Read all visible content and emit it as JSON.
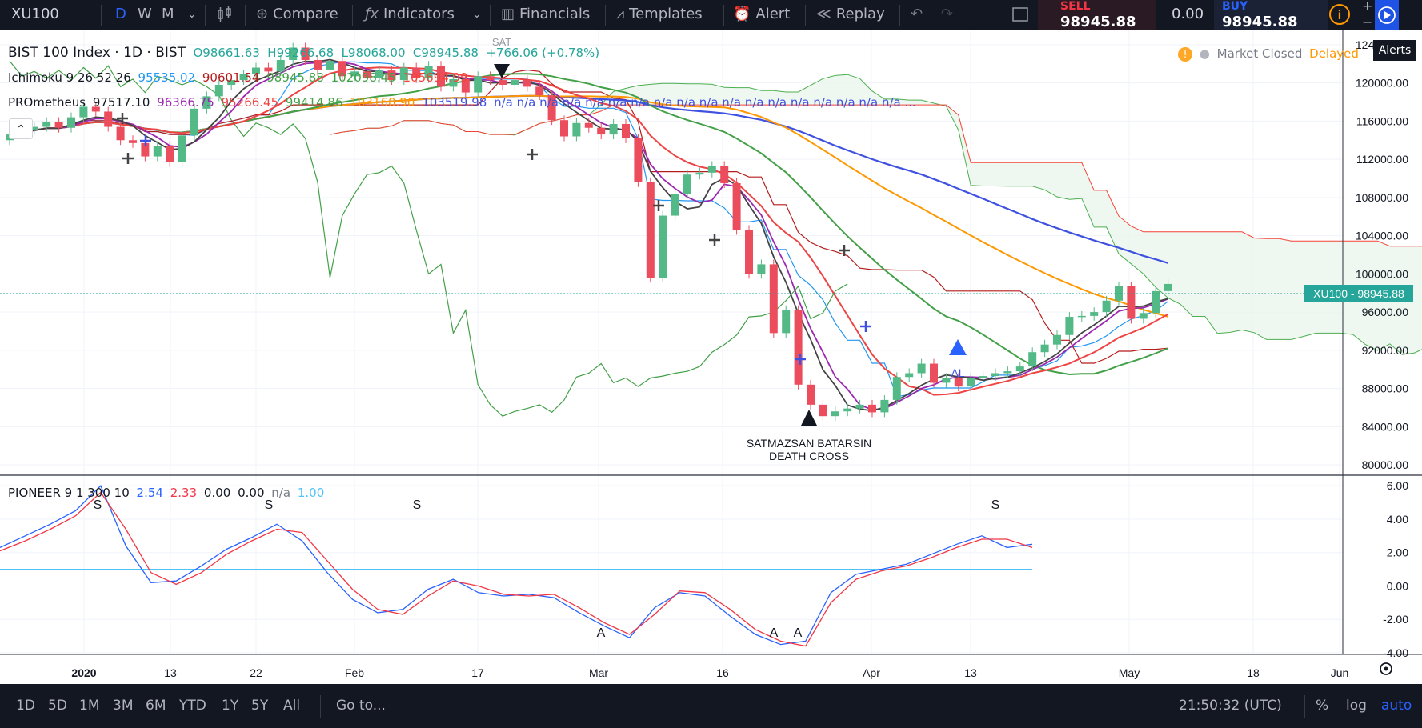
{
  "toolbar": {
    "symbol": "XU100",
    "intervals": [
      "D",
      "W",
      "M"
    ],
    "compare": "Compare",
    "indicators": "Indicators",
    "financials": "Financials",
    "templates": "Templates",
    "alert": "Alert",
    "replay": "Replay",
    "sell_label": "SELL",
    "sell_value": "98945.88",
    "spread": "0.00",
    "buy_label": "BUY",
    "buy_value": "98945.88",
    "alerts_tooltip": "Alerts"
  },
  "legend": {
    "title": "BIST 100 Index · 1D · BIST",
    "open": "O98661.63",
    "high": "H99266.68",
    "low": "L98068.00",
    "close": "C98945.88",
    "change": "+766.06 (+0.78%)",
    "ichimoku": {
      "name": "Ichimoku 9 26 52 26",
      "values": [
        "95535.02",
        "90601.54",
        "98945.88",
        "102098.45",
        "105694.99"
      ]
    },
    "prometheus": {
      "name": "PROmetheus",
      "values": [
        "97517.10",
        "96366.75",
        "95266.45",
        "99414.86",
        "103160.90",
        "103519.98"
      ],
      "tail": "n/a n/a n/a n/a n/a n/a n/a n/a n/a n/a n/a n/a n/a n/a n/a n/a n/a n/a ..."
    },
    "pioneer": {
      "name": "PIONEER 9 1 300 10",
      "values": [
        "2.54",
        "2.33",
        "0.00",
        "0.00",
        "n/a",
        "1.00"
      ]
    },
    "market_status": "Market Closed",
    "delayed": "Delayed",
    "price_tag": "XU100 - 98945.88"
  },
  "annotations": {
    "sat": "SAT",
    "al": "AL",
    "death_cross_line1": "SATMAZSAN BATARSIN",
    "death_cross_line2": "DEATH CROSS",
    "pioneer_marks": [
      "S",
      "S",
      "S",
      "S",
      "A",
      "A",
      "A"
    ]
  },
  "bottom": {
    "ranges": [
      "1D",
      "5D",
      "1M",
      "3M",
      "6M",
      "YTD",
      "1Y",
      "5Y",
      "All"
    ],
    "goto": "Go to...",
    "time": "21:50:32 (UTC)",
    "pct": "%",
    "log": "log",
    "auto": "auto"
  },
  "colors": {
    "up": "#53b987",
    "down": "#eb4d5c",
    "up_text": "#26a69a",
    "bg_dark": "#131722",
    "accent": "#2962ff",
    "ichimoku_conv": "#2196f3",
    "ichimoku_base": "#b71c1c",
    "ichimoku_lagging": "#43a047",
    "ichimoku_span_a": "#4caf50",
    "ichimoku_span_b": "#f44336",
    "ma_orange": "#ff9800",
    "ma_blue": "#3f51e0",
    "ma_green": "#43a047",
    "ma_red": "#ef4444",
    "ma_purple": "#9c27b0",
    "ma_black": "#444444",
    "pioneer_blue": "#2962ff",
    "pioneer_red": "#f23645",
    "pioneer_level": "#4fc3f7"
  },
  "chart_data": [
    {
      "type": "candlestick",
      "title": "BIST 100 Index · 1D · BIST",
      "y_axis_ticks": [
        "124000.00",
        "120000.00",
        "116000.00",
        "112000.00",
        "108000.00",
        "104000.00",
        "100000.00",
        "96000.00",
        "92000.00",
        "88000.00",
        "84000.00",
        "80000.00"
      ],
      "x_axis_ticks": [
        "2020",
        "13",
        "22",
        "Feb",
        "17",
        "Mar",
        "16",
        "Apr",
        "13",
        "May",
        "18",
        "Jun"
      ],
      "ylim": [
        79000,
        125500
      ],
      "candles": [
        {
          "o": 114000,
          "c": 114600
        },
        {
          "o": 114600,
          "c": 115100
        },
        {
          "o": 115100,
          "c": 115400
        },
        {
          "o": 115400,
          "c": 115900
        },
        {
          "o": 115900,
          "c": 115300
        },
        {
          "o": 115300,
          "c": 116400
        },
        {
          "o": 116400,
          "c": 117500
        },
        {
          "o": 117500,
          "c": 117000
        },
        {
          "o": 117000,
          "c": 115400
        },
        {
          "o": 115400,
          "c": 114000
        },
        {
          "o": 114000,
          "c": 113700
        },
        {
          "o": 113700,
          "c": 112300
        },
        {
          "o": 112300,
          "c": 113400
        },
        {
          "o": 113400,
          "c": 111700
        },
        {
          "o": 111700,
          "c": 114500
        },
        {
          "o": 114500,
          "c": 117300
        },
        {
          "o": 117300,
          "c": 118600
        },
        {
          "o": 118600,
          "c": 119800
        },
        {
          "o": 119800,
          "c": 120300
        },
        {
          "o": 120300,
          "c": 120900
        },
        {
          "o": 120900,
          "c": 121600
        },
        {
          "o": 121600,
          "c": 121200
        },
        {
          "o": 121200,
          "c": 122400
        },
        {
          "o": 122400,
          "c": 123700
        },
        {
          "o": 123700,
          "c": 122400
        },
        {
          "o": 122400,
          "c": 121400
        },
        {
          "o": 121400,
          "c": 122300
        },
        {
          "o": 122300,
          "c": 120700
        },
        {
          "o": 120700,
          "c": 121200
        },
        {
          "o": 121200,
          "c": 120500
        },
        {
          "o": 120500,
          "c": 121300
        },
        {
          "o": 121300,
          "c": 120300
        },
        {
          "o": 120300,
          "c": 121600
        },
        {
          "o": 121600,
          "c": 120500
        },
        {
          "o": 120500,
          "c": 121800
        },
        {
          "o": 121800,
          "c": 119600
        },
        {
          "o": 119600,
          "c": 120400
        },
        {
          "o": 120400,
          "c": 119000
        },
        {
          "o": 119000,
          "c": 120700
        },
        {
          "o": 120700,
          "c": 120300
        },
        {
          "o": 120300,
          "c": 119800
        },
        {
          "o": 119800,
          "c": 120300
        },
        {
          "o": 120300,
          "c": 119600
        },
        {
          "o": 119600,
          "c": 118700
        },
        {
          "o": 118700,
          "c": 116100
        },
        {
          "o": 116100,
          "c": 114400
        },
        {
          "o": 114400,
          "c": 115800
        },
        {
          "o": 115800,
          "c": 115300
        },
        {
          "o": 115300,
          "c": 114600
        },
        {
          "o": 114600,
          "c": 115700
        },
        {
          "o": 115700,
          "c": 114200
        },
        {
          "o": 114200,
          "c": 109600
        },
        {
          "o": 109600,
          "c": 99600
        },
        {
          "o": 99600,
          "c": 106100
        },
        {
          "o": 106100,
          "c": 108400
        },
        {
          "o": 108400,
          "c": 110400
        },
        {
          "o": 110400,
          "c": 110600
        },
        {
          "o": 110600,
          "c": 111300
        },
        {
          "o": 111300,
          "c": 109500
        },
        {
          "o": 109500,
          "c": 104600
        },
        {
          "o": 104600,
          "c": 100000
        },
        {
          "o": 100000,
          "c": 101000
        },
        {
          "o": 101000,
          "c": 93800
        },
        {
          "o": 93800,
          "c": 96200
        },
        {
          "o": 96200,
          "c": 88400
        },
        {
          "o": 88400,
          "c": 86300
        },
        {
          "o": 86300,
          "c": 85100
        },
        {
          "o": 85100,
          "c": 85600
        },
        {
          "o": 85600,
          "c": 85900
        },
        {
          "o": 85900,
          "c": 86300
        },
        {
          "o": 86300,
          "c": 85500
        },
        {
          "o": 85500,
          "c": 86800
        },
        {
          "o": 86800,
          "c": 89200
        },
        {
          "o": 89200,
          "c": 89600
        },
        {
          "o": 89600,
          "c": 90600
        },
        {
          "o": 90600,
          "c": 88600
        },
        {
          "o": 88600,
          "c": 89100
        },
        {
          "o": 89100,
          "c": 88200
        },
        {
          "o": 88200,
          "c": 89100
        },
        {
          "o": 89100,
          "c": 89300
        },
        {
          "o": 89300,
          "c": 89600
        },
        {
          "o": 89600,
          "c": 89800
        },
        {
          "o": 89800,
          "c": 90300
        },
        {
          "o": 90300,
          "c": 91800
        },
        {
          "o": 91800,
          "c": 92600
        },
        {
          "o": 92600,
          "c": 93600
        },
        {
          "o": 93600,
          "c": 95500
        },
        {
          "o": 95500,
          "c": 95600
        },
        {
          "o": 95600,
          "c": 96000
        },
        {
          "o": 96000,
          "c": 97200
        },
        {
          "o": 97200,
          "c": 98700
        },
        {
          "o": 98700,
          "c": 95300
        },
        {
          "o": 95300,
          "c": 95900
        },
        {
          "o": 95900,
          "c": 98200
        },
        {
          "o": 98200,
          "c": 98946
        }
      ]
    },
    {
      "type": "line",
      "title": "PIONEER 9 1 300 10",
      "y_axis_ticks": [
        "6.00",
        "4.00",
        "2.00",
        "0.00",
        "-2.00",
        "-4.00"
      ],
      "ylim": [
        -4,
        6.2
      ],
      "level": 1.0,
      "series": [
        {
          "name": "",
          "values": [
            2.3,
            3.0,
            3.7,
            4.5,
            6.0,
            2.4,
            0.2,
            0.3,
            1.2,
            2.2,
            2.9,
            3.7,
            2.7,
            0.8,
            -0.8,
            -1.6,
            -1.4,
            -0.2,
            0.4,
            -0.4,
            -0.6,
            -0.5,
            -0.7,
            -1.6,
            -2.4,
            -3.1,
            -1.3,
            -0.4,
            -0.6,
            -1.8,
            -2.9,
            -3.5,
            -3.3,
            -0.4,
            0.7,
            1.0,
            1.3,
            1.9,
            2.5,
            3.0,
            2.3,
            2.5
          ]
        },
        {
          "name": "",
          "values": [
            2.1,
            2.7,
            3.4,
            4.2,
            5.6,
            3.4,
            0.8,
            0.1,
            0.8,
            1.9,
            2.7,
            3.4,
            3.2,
            1.5,
            -0.2,
            -1.4,
            -1.7,
            -0.6,
            0.3,
            0.0,
            -0.5,
            -0.6,
            -0.5,
            -1.3,
            -2.2,
            -2.9,
            -1.7,
            -0.3,
            -0.4,
            -1.4,
            -2.6,
            -3.3,
            -3.6,
            -1.0,
            0.4,
            0.9,
            1.2,
            1.7,
            2.3,
            2.8,
            2.8,
            2.3
          ]
        }
      ]
    }
  ]
}
